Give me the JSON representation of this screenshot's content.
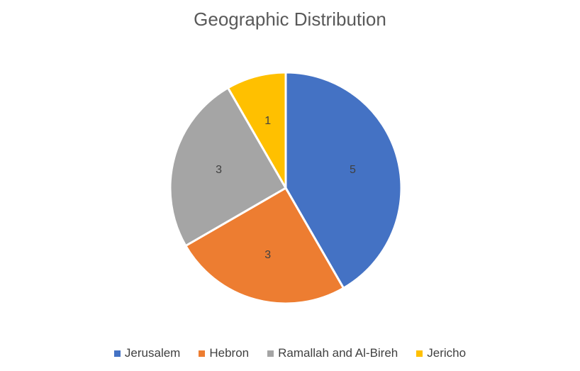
{
  "chart_data": {
    "type": "pie",
    "title": "Geographic Distribution",
    "categories": [
      "Jerusalem",
      "Hebron",
      "Ramallah and Al-Bireh",
      "Jericho"
    ],
    "values": [
      5,
      3,
      3,
      1
    ],
    "colors": [
      "#4472C4",
      "#ED7D31",
      "#A5A5A5",
      "#FFC000"
    ],
    "data_labels": [
      "5",
      "3",
      "3",
      "1"
    ],
    "legend_position": "bottom"
  }
}
